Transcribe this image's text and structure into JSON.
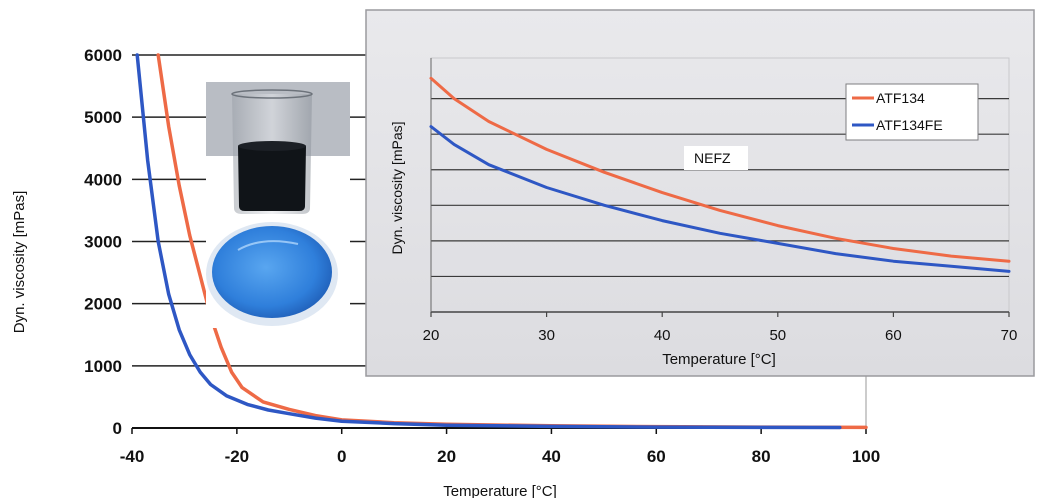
{
  "chart_data": [
    {
      "type": "line",
      "title": "",
      "xlabel": "Temperature [°C]",
      "ylabel": "Dyn. viscosity [mPas]",
      "xlim": [
        -40,
        100
      ],
      "ylim": [
        0,
        6000
      ],
      "xticks": [
        -40,
        -20,
        0,
        20,
        40,
        60,
        80,
        100
      ],
      "yticks": [
        0,
        1000,
        2000,
        3000,
        4000,
        5000,
        6000
      ],
      "xtick_labels": [
        "-40",
        "-20",
        "0",
        "20",
        "40",
        "60",
        "80",
        "100"
      ],
      "ytick_labels": [
        "0",
        "1000",
        "2000",
        "3000",
        "4000",
        "5000",
        "6000"
      ],
      "grid": "horizontal",
      "series": [
        {
          "name": "ATF134",
          "color": "#ee6a46",
          "x": [
            -35,
            -33,
            -31,
            -29,
            -27,
            -25,
            -23,
            -21,
            -19,
            -15,
            -10,
            -5,
            0,
            10,
            20,
            40,
            60,
            80,
            100
          ],
          "y": [
            6000,
            4850,
            3900,
            3100,
            2450,
            1800,
            1300,
            900,
            650,
            420,
            300,
            200,
            130,
            85,
            60,
            35,
            22,
            15,
            10
          ]
        },
        {
          "name": "ATF134FE",
          "color": "#2e57c4",
          "x": [
            -39,
            -37,
            -35,
            -33,
            -31,
            -29,
            -27,
            -25,
            -22,
            -18,
            -14,
            -10,
            -5,
            0,
            10,
            20,
            40,
            60,
            80,
            95
          ],
          "y": [
            6000,
            4300,
            3000,
            2150,
            1580,
            1180,
            900,
            700,
            520,
            380,
            290,
            230,
            160,
            110,
            70,
            45,
            25,
            15,
            10,
            8
          ]
        }
      ]
    },
    {
      "type": "line",
      "title": "",
      "xlabel": "Temperature [°C]",
      "ylabel": "Dyn. viscosity [mPas]",
      "xlim": [
        20,
        70
      ],
      "xticks": [
        20,
        30,
        40,
        50,
        60,
        70
      ],
      "xtick_labels": [
        "20",
        "30",
        "40",
        "50",
        "60",
        "70"
      ],
      "grid": "horizontal",
      "legend": "top-right",
      "annotation": "NEFZ",
      "series": [
        {
          "name": "ATF134",
          "color": "#ee6a46",
          "x": [
            20,
            22,
            25,
            30,
            35,
            40,
            45,
            50,
            55,
            60,
            65,
            70
          ],
          "y_fraction": [
            0.92,
            0.84,
            0.75,
            0.64,
            0.55,
            0.47,
            0.4,
            0.34,
            0.29,
            0.25,
            0.22,
            0.2
          ]
        },
        {
          "name": "ATF134FE",
          "color": "#2e57c4",
          "x": [
            20,
            22,
            25,
            30,
            35,
            40,
            45,
            50,
            55,
            60,
            65,
            70
          ],
          "y_fraction": [
            0.73,
            0.66,
            0.58,
            0.49,
            0.42,
            0.36,
            0.31,
            0.27,
            0.23,
            0.2,
            0.18,
            0.16
          ]
        }
      ]
    }
  ]
}
